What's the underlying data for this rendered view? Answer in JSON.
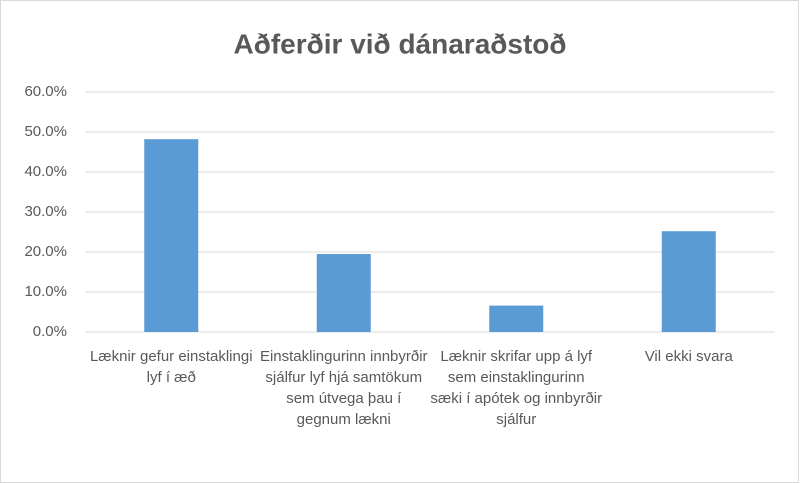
{
  "chart_data": {
    "type": "bar",
    "title": "Aðferðir við dánaraðstoð",
    "categories": [
      "Læknir gefur einstaklingi lyf í æð",
      "Einstaklingurinn innbyrðir sjálfur lyf hjá samtökum sem útvega þau í gegnum lækni",
      "Læknir skrifar upp á lyf sem einstaklingurinn sæki í apótek og innbyrðir sjálfur",
      "Vil ekki svara"
    ],
    "values": [
      48.2,
      19.5,
      6.6,
      25.2
    ],
    "color": "#5b9bd5",
    "ylim": [
      0,
      60
    ],
    "yticks": [
      {
        "value": 0,
        "label": "0.0%"
      },
      {
        "value": 10,
        "label": "10.0%"
      },
      {
        "value": 20,
        "label": "20.0%"
      },
      {
        "value": 30,
        "label": "30.0%"
      },
      {
        "value": 40,
        "label": "40.0%"
      },
      {
        "value": 50,
        "label": "50.0%"
      },
      {
        "value": 60,
        "label": "60.0%"
      }
    ],
    "grid": true
  }
}
